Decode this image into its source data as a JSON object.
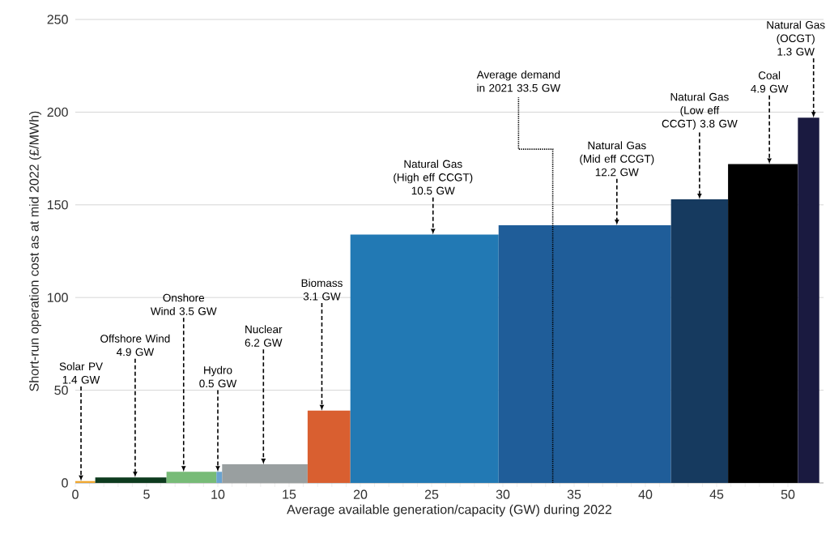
{
  "chart_data": {
    "type": "histogram",
    "xlabel": "Average available generation/capacity (GW) during 2022",
    "ylabel": "Short-run operation cost as at mid 2022 (£/MWh)",
    "bins": [
      0,
      1.4,
      6.4,
      9.9,
      10.3,
      16.3,
      19.3,
      29.7,
      41.8,
      45.8,
      50.7,
      52.2
    ],
    "values": [
      1,
      3,
      6,
      6,
      10,
      39,
      134,
      139,
      153,
      172,
      197
    ],
    "colors": [
      "#f0a830",
      "#0d3b1e",
      "#77bb77",
      "#6aa3d0",
      "#999fa0",
      "#d95f30",
      "#2279b4",
      "#1f5d99",
      "#163a5f",
      "#000000",
      "#1a1a40"
    ],
    "xlim": [
      0,
      52.5
    ],
    "ylim": [
      0,
      250
    ],
    "xticks": [
      0,
      5,
      10,
      15,
      20,
      25,
      30,
      35,
      40,
      45,
      50
    ],
    "yticks": [
      0,
      50,
      100,
      150,
      200,
      250
    ],
    "grid": "y",
    "ref_lines": [
      {
        "axis": "x",
        "value": 33.5,
        "label": "Average demand in 2021 33.5 GW",
        "line_style": "dotted"
      }
    ],
    "annotations": [
      {
        "text": "Solar PV 1.4 GW",
        "x": 0.4,
        "y": 1
      },
      {
        "text": "Offshore Wind 4.9 GW",
        "x": 4.2,
        "y": 3
      },
      {
        "text": "Onshore Wind 3.5 GW",
        "x": 7.6,
        "y": 6
      },
      {
        "text": "Hydro 0.5 GW",
        "x": 10.0,
        "y": 6
      },
      {
        "text": "Nuclear 6.2 GW",
        "x": 13.2,
        "y": 10
      },
      {
        "text": "Biomass 3.1 GW",
        "x": 17.3,
        "y": 39
      },
      {
        "text": "Natural Gas (High eff CCGT) 10.5 GW",
        "x": 25.1,
        "y": 134
      },
      {
        "text": "Natural Gas (Mid eff CCGT) 12.2 GW",
        "x": 38.0,
        "y": 139
      },
      {
        "text": "Natural Gas (Low eff CCGT) 3.8 GW",
        "x": 43.8,
        "y": 153
      },
      {
        "text": "Coal 4.9 GW",
        "x": 48.7,
        "y": 172
      },
      {
        "text": "Natural Gas (OCGT) 1.3 GW",
        "x": 51.8,
        "y": 197
      }
    ]
  }
}
